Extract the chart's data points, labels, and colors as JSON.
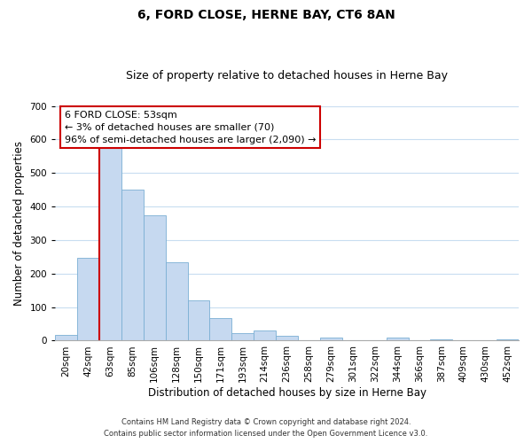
{
  "title": "6, FORD CLOSE, HERNE BAY, CT6 8AN",
  "subtitle": "Size of property relative to detached houses in Herne Bay",
  "xlabel": "Distribution of detached houses by size in Herne Bay",
  "ylabel": "Number of detached properties",
  "bar_labels": [
    "20sqm",
    "42sqm",
    "63sqm",
    "85sqm",
    "106sqm",
    "128sqm",
    "150sqm",
    "171sqm",
    "193sqm",
    "214sqm",
    "236sqm",
    "258sqm",
    "279sqm",
    "301sqm",
    "322sqm",
    "344sqm",
    "366sqm",
    "387sqm",
    "409sqm",
    "430sqm",
    "452sqm"
  ],
  "bar_values": [
    18,
    248,
    583,
    450,
    375,
    235,
    120,
    67,
    23,
    30,
    14,
    0,
    10,
    0,
    0,
    8,
    0,
    5,
    0,
    0,
    3
  ],
  "bar_color": "#c6d9f0",
  "bar_edge_color": "#7bafd4",
  "ylim": [
    0,
    700
  ],
  "yticks": [
    0,
    100,
    200,
    300,
    400,
    500,
    600,
    700
  ],
  "red_line_x": 1.5,
  "annotation_title": "6 FORD CLOSE: 53sqm",
  "annotation_line1": "← 3% of detached houses are smaller (70)",
  "annotation_line2": "96% of semi-detached houses are larger (2,090) →",
  "annotation_box_color": "#ffffff",
  "annotation_box_edge": "#cc0000",
  "red_line_color": "#cc0000",
  "footnote1": "Contains HM Land Registry data © Crown copyright and database right 2024.",
  "footnote2": "Contains public sector information licensed under the Open Government Licence v3.0.",
  "bg_color": "#ffffff",
  "grid_color": "#c8ddf0",
  "title_fontsize": 10,
  "subtitle_fontsize": 9,
  "axis_label_fontsize": 8.5,
  "tick_fontsize": 7.5,
  "footnote_fontsize": 6.0
}
